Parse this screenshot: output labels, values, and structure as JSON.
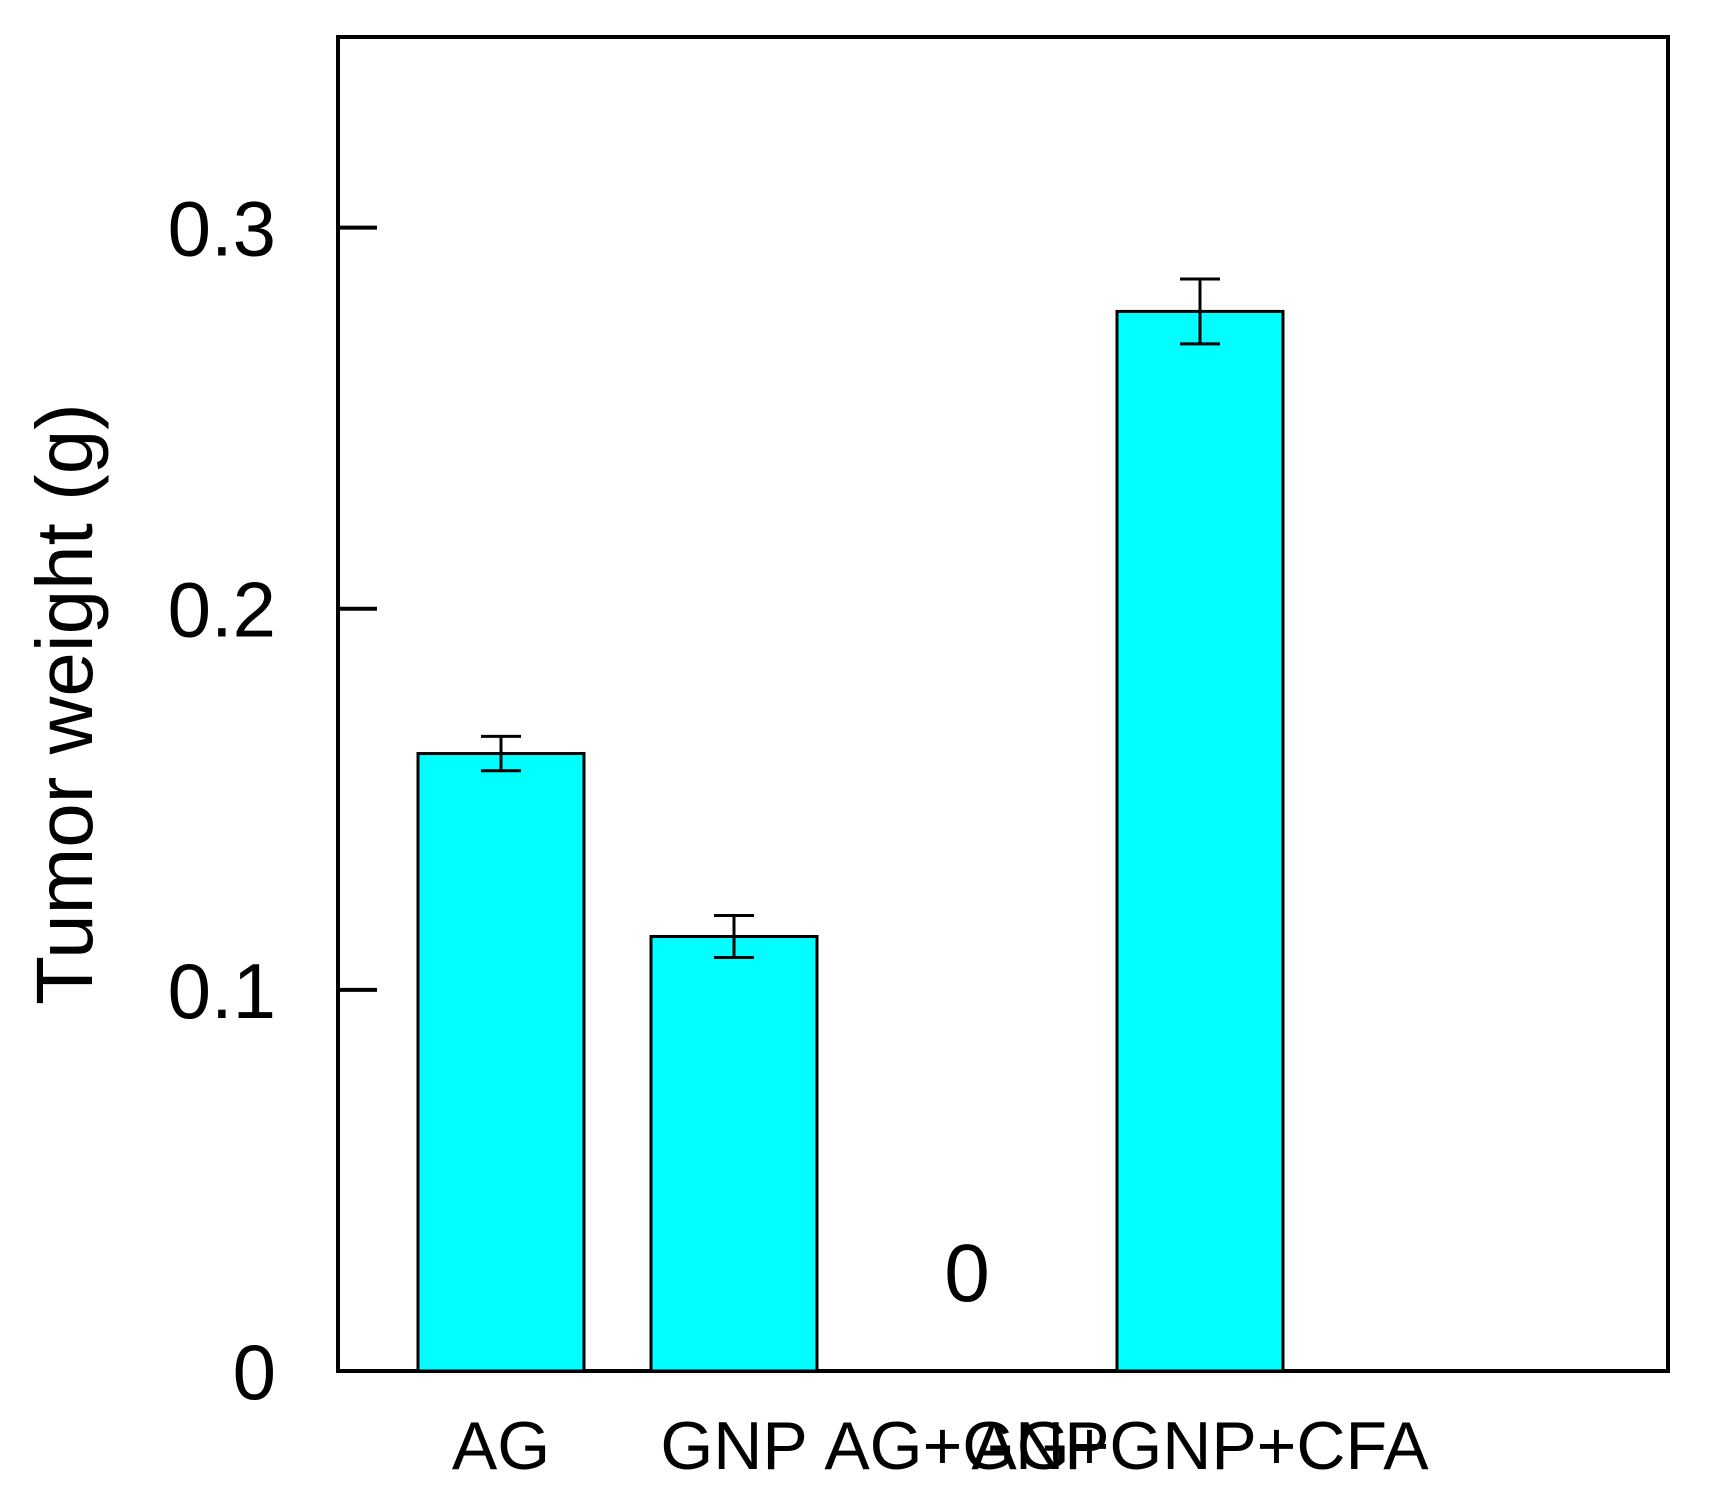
{
  "chart_data": {
    "type": "bar",
    "categories": [
      "AG",
      "GNP",
      "AG+GNP",
      "AG+GNP+CFA"
    ],
    "values": [
      0.162,
      0.114,
      0,
      0.278
    ],
    "error": [
      0.0045,
      0.0055,
      0,
      0.0085
    ],
    "data_labels": [
      "",
      "",
      "0",
      ""
    ],
    "xlabel": "",
    "ylabel": "Tumor weight (g)",
    "ylim": [
      0,
      0.35
    ],
    "yticks": [
      0,
      0.1,
      0.2,
      0.3
    ],
    "ytick_labels": [
      "0",
      "0.1",
      "0.2",
      "0.3"
    ],
    "grid": false,
    "legend": "none",
    "bar_color": "#00FFFF",
    "edge_color": "#000000"
  }
}
